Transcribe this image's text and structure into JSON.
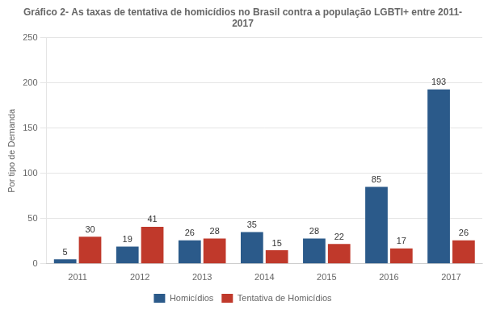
{
  "chart_data": {
    "type": "bar",
    "title": "Gráfico 2- As taxas de tentativa de homicídios no Brasil contra a população LGBTI+ entre 2011- 2017",
    "ylabel": "Por tipo de Demanda",
    "categories": [
      "2011",
      "2012",
      "2013",
      "2014",
      "2015",
      "2016",
      "2017"
    ],
    "series": [
      {
        "name": "Homicídios",
        "color": "#2B5A8A",
        "values": [
          5,
          19,
          26,
          35,
          28,
          85,
          193
        ]
      },
      {
        "name": "Tentativa de Homicídios",
        "color": "#C0392B",
        "values": [
          30,
          41,
          28,
          15,
          22,
          17,
          26
        ]
      }
    ],
    "ylim": [
      0,
      250
    ],
    "yticks": [
      0,
      50,
      100,
      150,
      200,
      250
    ],
    "grid": true,
    "legend": "bottom",
    "data_labels": true
  }
}
